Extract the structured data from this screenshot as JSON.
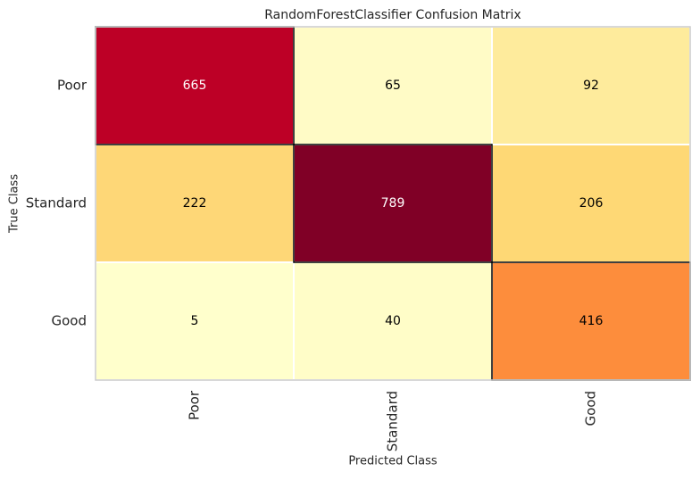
{
  "chart_data": {
    "type": "heatmap",
    "title": "RandomForestClassifier Confusion Matrix",
    "x_label": "Predicted Class",
    "y_label": "True Class",
    "columns": [
      "Poor",
      "Standard",
      "Good"
    ],
    "rows": [
      "Poor",
      "Standard",
      "Good"
    ],
    "values": [
      [
        665,
        65,
        92
      ],
      [
        222,
        789,
        206
      ],
      [
        5,
        40,
        416
      ]
    ],
    "colors": [
      [
        "#bd0026",
        "#fffbc6",
        "#feeb9c"
      ],
      [
        "#fed777",
        "#800026",
        "#fed875"
      ],
      [
        "#ffffcc",
        "#fffdc8",
        "#fd8d3c"
      ]
    ]
  }
}
